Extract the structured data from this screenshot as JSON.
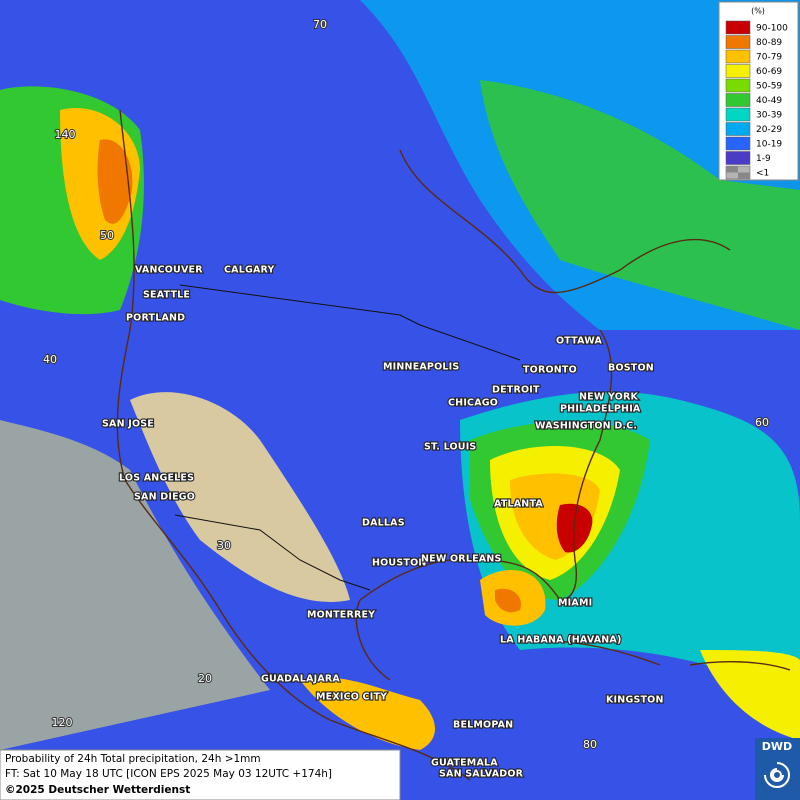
{
  "legend": {
    "title": "(%)",
    "items": [
      {
        "label": "90-100",
        "color": "#c80000"
      },
      {
        "label": "80-89",
        "color": "#f07800"
      },
      {
        "label": "70-79",
        "color": "#ffc000"
      },
      {
        "label": "60-69",
        "color": "#f5f000"
      },
      {
        "label": "50-59",
        "color": "#78dc00"
      },
      {
        "label": "40-49",
        "color": "#32c832"
      },
      {
        "label": "30-39",
        "color": "#00d7c3"
      },
      {
        "label": "20-29",
        "color": "#00aaf0"
      },
      {
        "label": "10-19",
        "color": "#2864ff"
      },
      {
        "label": "1-9",
        "color": "#4b3cc8"
      },
      {
        "label": "<1",
        "color": "#b4b4b4"
      }
    ]
  },
  "cities": [
    "VANCOUVER",
    "CALGARY",
    "SEATTLE",
    "PORTLAND",
    "MINNEAPOLIS",
    "TORONTO",
    "OTTAWA",
    "BOSTON",
    "DETROIT",
    "CHICAGO",
    "NEW YORK",
    "PHILADELPHIA",
    "WASHINGTON D.C.",
    "SAN JOSE",
    "ST. LOUIS",
    "LOS ANGELES",
    "SAN DIEGO",
    "ATLANTA",
    "DALLAS",
    "HOUSTON",
    "NEW ORLEANS",
    "MIAMI",
    "MONTERREY",
    "LA HABANA (HAVANA)",
    "GUADALAJARA",
    "MEXICO CITY",
    "KINGSTON",
    "BELMOPAN",
    "GUATEMALA",
    "SAN SALVADOR"
  ],
  "grid_labels": [
    "140",
    "50",
    "40",
    "30",
    "20",
    "120",
    "60",
    "80",
    "70"
  ],
  "footer": {
    "line1": "Probability of 24h Total precipitation, 24h >1mm",
    "line2": "FT: Sat 10 May 18 UTC [ICON EPS 2025 May 03 12UTC +174h]",
    "line3": "©2025 Deutscher Wetterdienst"
  },
  "logo": "DWD"
}
